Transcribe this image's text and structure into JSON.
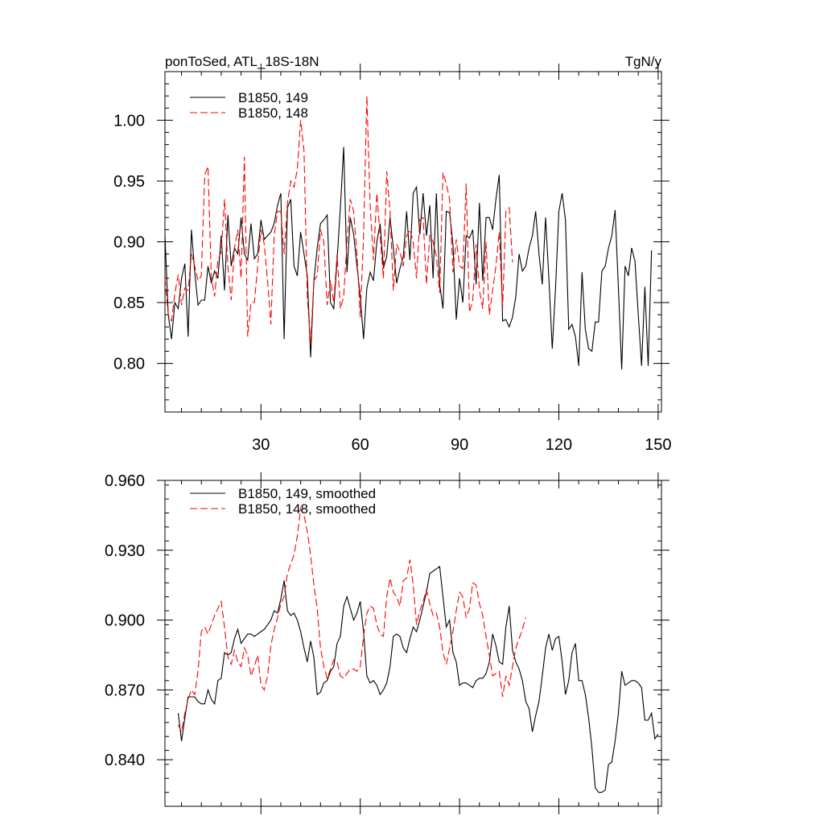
{
  "title_left": "ponToSed, ATL_18S-18N",
  "title_right": "TgN/y",
  "chart_data": [
    {
      "type": "line",
      "title": "ponToSed, ATL_18S-18N",
      "units": "TgN/y",
      "xlim": [
        1,
        151
      ],
      "ylim": [
        0.76,
        1.04
      ],
      "xticks": [
        30,
        60,
        90,
        120,
        150
      ],
      "xtick_labels": [
        "30",
        "60",
        "90",
        "120",
        "150"
      ],
      "yticks": [
        0.8,
        0.85,
        0.9,
        0.95,
        1.0
      ],
      "ytick_labels": [
        "0.80",
        "0.85",
        "0.90",
        "0.95",
        "1.00"
      ],
      "legend_position": "top-left",
      "series": [
        {
          "name": "B1850, 149",
          "color": "#000000",
          "dash": "solid",
          "x_start": 1,
          "values": [
            0.905,
            0.84,
            0.82,
            0.85,
            0.845,
            0.87,
            0.882,
            0.822,
            0.91,
            0.875,
            0.848,
            0.852,
            0.852,
            0.88,
            0.866,
            0.876,
            0.87,
            0.905,
            0.86,
            0.922,
            0.88,
            0.895,
            0.89,
            0.92,
            0.89,
            0.885,
            0.915,
            0.886,
            0.89,
            0.918,
            0.902,
            0.905,
            0.908,
            0.915,
            0.93,
            0.94,
            0.82,
            0.928,
            0.935,
            0.88,
            0.872,
            0.908,
            0.89,
            0.872,
            0.805,
            0.868,
            0.895,
            0.915,
            0.918,
            0.922,
            0.85,
            0.845,
            0.885,
            0.928,
            0.978,
            0.875,
            0.92,
            0.906,
            0.88,
            0.855,
            0.82,
            0.862,
            0.875,
            0.868,
            0.9,
            0.915,
            0.878,
            0.888,
            0.92,
            0.895,
            0.866,
            0.878,
            0.888,
            0.925,
            0.885,
            0.94,
            0.945,
            0.906,
            0.94,
            0.905,
            0.93,
            0.87,
            0.94,
            0.865,
            0.845,
            0.925,
            0.924,
            0.898,
            0.836,
            0.87,
            0.85,
            0.905,
            0.903,
            0.91,
            0.865,
            0.932,
            0.868,
            0.92,
            0.92,
            0.91,
            0.935,
            0.955,
            0.835,
            0.836,
            0.83,
            0.838,
            0.855,
            0.89,
            0.876,
            0.88,
            0.895,
            0.905,
            0.925,
            0.89,
            0.865,
            0.92,
            0.87,
            0.812,
            0.862,
            0.925,
            0.94,
            0.918,
            0.828,
            0.832,
            0.822,
            0.798,
            0.875,
            0.828,
            0.812,
            0.81,
            0.834,
            0.834,
            0.876,
            0.88,
            0.895,
            0.905,
            0.926,
            0.862,
            0.795,
            0.88,
            0.872,
            0.895,
            0.884,
            0.84,
            0.798,
            0.863,
            0.798,
            0.893
          ]
        },
        {
          "name": "B1850, 148",
          "color": "#ff0000",
          "dash": "dashed",
          "x_start": 1,
          "values": [
            0.87,
            0.84,
            0.835,
            0.858,
            0.873,
            0.848,
            0.862,
            0.86,
            0.89,
            0.88,
            0.868,
            0.872,
            0.955,
            0.962,
            0.87,
            0.855,
            0.885,
            0.892,
            0.935,
            0.88,
            0.852,
            0.895,
            0.91,
            0.87,
            0.97,
            0.822,
            0.85,
            0.85,
            0.88,
            0.91,
            0.898,
            0.868,
            0.832,
            0.905,
            0.925,
            0.925,
            0.89,
            0.932,
            0.95,
            0.945,
            0.96,
            1.0,
            0.975,
            0.855,
            0.816,
            0.868,
            0.872,
            0.91,
            0.9,
            0.848,
            0.868,
            0.85,
            0.89,
            0.845,
            0.855,
            0.9,
            0.935,
            0.925,
            0.89,
            0.838,
            0.905,
            1.02,
            0.93,
            0.885,
            0.94,
            0.905,
            0.87,
            0.958,
            0.925,
            0.86,
            0.898,
            0.892,
            0.88,
            0.905,
            0.91,
            0.9,
            0.87,
            0.918,
            0.92,
            0.865,
            0.905,
            0.9,
            0.888,
            0.858,
            0.957,
            0.948,
            0.935,
            0.875,
            0.902,
            0.88,
            0.878,
            0.948,
            0.842,
            0.852,
            0.898,
            0.86,
            0.845,
            0.9,
            0.84,
            0.86,
            0.88,
            0.908,
            0.845,
            0.925,
            0.928,
            0.883
          ]
        }
      ]
    },
    {
      "type": "line",
      "xlim": [
        1,
        151
      ],
      "ylim": [
        0.82,
        0.96
      ],
      "xticks": [
        30,
        60,
        90,
        120,
        150
      ],
      "yticks": [
        0.84,
        0.87,
        0.9,
        0.93,
        0.96
      ],
      "ytick_labels": [
        "0.840",
        "0.870",
        "0.900",
        "0.930",
        "0.960"
      ],
      "legend_position": "top-left",
      "series": [
        {
          "name": "B1850, 149, smoothed",
          "color": "#000000",
          "dash": "solid",
          "x_start": 5,
          "values": [
            0.86,
            0.848,
            0.858,
            0.867,
            0.867,
            0.867,
            0.865,
            0.864,
            0.864,
            0.87,
            0.866,
            0.864,
            0.874,
            0.875,
            0.886,
            0.885,
            0.886,
            0.892,
            0.896,
            0.89,
            0.892,
            0.894,
            0.894,
            0.893,
            0.894,
            0.895,
            0.896,
            0.898,
            0.9,
            0.904,
            0.903,
            0.909,
            0.917,
            0.904,
            0.902,
            0.903,
            0.9,
            0.895,
            0.888,
            0.882,
            0.891,
            0.884,
            0.868,
            0.869,
            0.873,
            0.874,
            0.878,
            0.88,
            0.89,
            0.893,
            0.906,
            0.91,
            0.905,
            0.9,
            0.903,
            0.908,
            0.895,
            0.876,
            0.873,
            0.874,
            0.872,
            0.868,
            0.87,
            0.873,
            0.88,
            0.893,
            0.894,
            0.893,
            0.888,
            0.886,
            0.892,
            0.897,
            0.895,
            0.9,
            0.906,
            0.912,
            0.92,
            0.921,
            0.922,
            0.923,
            0.91,
            0.897,
            0.9,
            0.886,
            0.882,
            0.872,
            0.873,
            0.873,
            0.872,
            0.871,
            0.874,
            0.875,
            0.875,
            0.877,
            0.882,
            0.894,
            0.889,
            0.882,
            0.881,
            0.897,
            0.906,
            0.887,
            0.882,
            0.879,
            0.874,
            0.865,
            0.862,
            0.852,
            0.859,
            0.865,
            0.876,
            0.888,
            0.894,
            0.887,
            0.892,
            0.893,
            0.882,
            0.868,
            0.874,
            0.886,
            0.89,
            0.874,
            0.874,
            0.868,
            0.858,
            0.845,
            0.828,
            0.826,
            0.826,
            0.827,
            0.838,
            0.839,
            0.848,
            0.86,
            0.878,
            0.872,
            0.873,
            0.874,
            0.874,
            0.873,
            0.871,
            0.857,
            0.857,
            0.86,
            0.849,
            0.851
          ]
        },
        {
          "name": "B1850, 148, smoothed",
          "color": "#ff0000",
          "dash": "dashed",
          "x_start": 5,
          "values": [
            0.855,
            0.852,
            0.86,
            0.866,
            0.87,
            0.868,
            0.878,
            0.895,
            0.897,
            0.894,
            0.898,
            0.902,
            0.905,
            0.908,
            0.897,
            0.884,
            0.881,
            0.887,
            0.882,
            0.88,
            0.888,
            0.885,
            0.876,
            0.88,
            0.885,
            0.872,
            0.87,
            0.876,
            0.889,
            0.896,
            0.901,
            0.907,
            0.91,
            0.92,
            0.924,
            0.928,
            0.936,
            0.948,
            0.945,
            0.938,
            0.928,
            0.915,
            0.905,
            0.888,
            0.88,
            0.875,
            0.879,
            0.883,
            0.882,
            0.876,
            0.875,
            0.877,
            0.879,
            0.879,
            0.878,
            0.88,
            0.893,
            0.903,
            0.906,
            0.905,
            0.898,
            0.894,
            0.893,
            0.91,
            0.918,
            0.912,
            0.91,
            0.906,
            0.917,
            0.918,
            0.926,
            0.915,
            0.898,
            0.904,
            0.908,
            0.913,
            0.907,
            0.902,
            0.903,
            0.897,
            0.886,
            0.881,
            0.888,
            0.895,
            0.904,
            0.912,
            0.91,
            0.901,
            0.905,
            0.916,
            0.915,
            0.907,
            0.902,
            0.893,
            0.885,
            0.876,
            0.877,
            0.878,
            0.867,
            0.876,
            0.872,
            0.88,
            0.888,
            0.892,
            0.896,
            0.901
          ]
        }
      ]
    }
  ]
}
